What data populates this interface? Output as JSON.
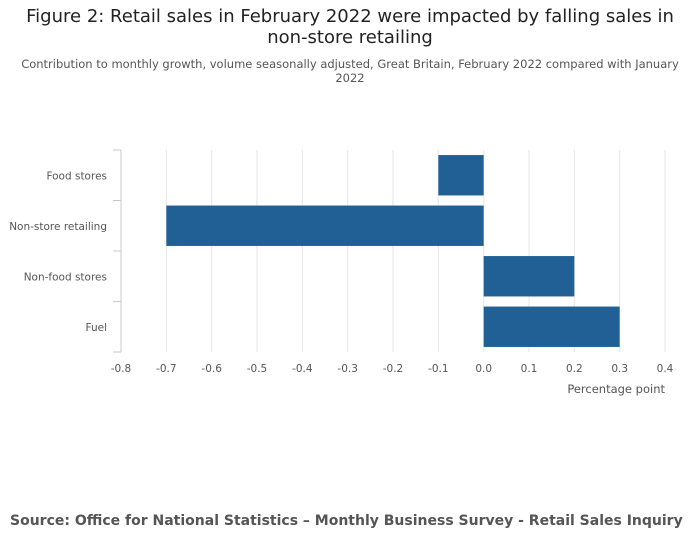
{
  "header": {
    "title_line1": "Figure 2: Retail sales in February 2022 were impacted by falling sales in",
    "title_line2": "non-store retailing",
    "subtitle_line1": "Contribution to monthly growth, volume seasonally adjusted, Great Britain, February 2022 compared with January",
    "subtitle_line2": "2022"
  },
  "footer": {
    "source": "Source: Office for National Statistics – Monthly Business Survey - Retail Sales Inquiry"
  },
  "chart_data": {
    "type": "bar",
    "orientation": "horizontal",
    "categories": [
      "Food stores",
      "Non-store retailing",
      "Non-food stores",
      "Fuel"
    ],
    "values": [
      -0.1,
      -0.7,
      0.2,
      0.3
    ],
    "xlabel": "Percentage point",
    "xlim": [
      -0.8,
      0.4
    ],
    "xticks": [
      -0.8,
      -0.7,
      -0.6,
      -0.5,
      -0.4,
      -0.3,
      -0.2,
      -0.1,
      0.0,
      0.1,
      0.2,
      0.3,
      0.4
    ],
    "xtick_labels": [
      "-0.8",
      "-0.7",
      "-0.6",
      "-0.5",
      "-0.4",
      "-0.3",
      "-0.2",
      "-0.1",
      "0.0",
      "0.1",
      "0.2",
      "0.3",
      "0.4"
    ],
    "grid": "vertical",
    "bar_color": "#206095"
  }
}
